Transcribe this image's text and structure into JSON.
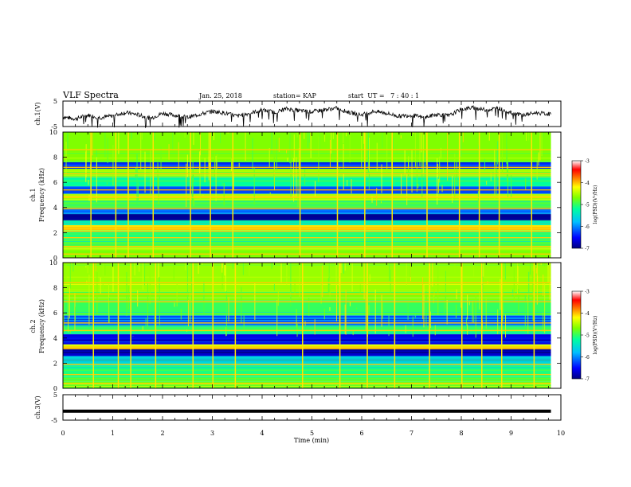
{
  "header": {
    "title": "VLF Spectra",
    "date": "Jan. 25, 2018",
    "station": "station= KAP",
    "start": "start  UT =   7 : 40 : 1"
  },
  "chart_data": [
    {
      "type": "line",
      "name": "ch1-waveform",
      "ylabel": "ch.1(V)",
      "yticks": [
        "5",
        "-5"
      ],
      "ylim": [
        -5,
        5
      ],
      "x": [
        0,
        0.25,
        0.5,
        0.75,
        1,
        1.25,
        1.5,
        1.75,
        2,
        2.25,
        2.5,
        2.75,
        3,
        3.25,
        3.5,
        3.75,
        4,
        4.25,
        4.5,
        4.75,
        5,
        5.25,
        5.5,
        5.75,
        6,
        6.25,
        6.5,
        6.75,
        7,
        7.25,
        7.5,
        7.75,
        8,
        8.25,
        8.5,
        8.75,
        9,
        9.25,
        9.5,
        9.8
      ],
      "values": [
        -1.2,
        -2.0,
        -0.5,
        -1.5,
        -0.8,
        0.5,
        -0.3,
        -1.8,
        0.2,
        -0.6,
        -1.4,
        -0.2,
        1.0,
        0.3,
        -0.9,
        0.2,
        1.5,
        0.6,
        2.0,
        1.2,
        0.8,
        1.6,
        2.2,
        0.5,
        -0.4,
        1.0,
        0.2,
        -1.0,
        -0.5,
        -1.6,
        -0.2,
        -0.8,
        1.8,
        2.4,
        1.5,
        2.2,
        0.3,
        -0.5,
        0.4,
        -0.2
      ],
      "xlim": [
        0,
        10
      ]
    },
    {
      "type": "heatmap",
      "name": "ch1-spectrogram",
      "ylabel": "ch.1\nFrequency (kHz)",
      "yticks": [
        "0",
        "2",
        "4",
        "6",
        "8",
        "10"
      ],
      "ylim": [
        0,
        10
      ],
      "xlim": [
        0,
        10
      ],
      "colorbar": {
        "label": "log(PSD)(V²/Hz)",
        "ticks": [
          "-3",
          "-4",
          "-5",
          "-6",
          "-7"
        ],
        "range": [
          -7,
          -3
        ]
      },
      "bands": [
        {
          "from": 0,
          "to": 0.8,
          "value": -5.0
        },
        {
          "from": 0.8,
          "to": 1.4,
          "value": -5.2
        },
        {
          "from": 1.4,
          "to": 2.2,
          "value": -5.4
        },
        {
          "from": 2.2,
          "to": 2.6,
          "value": -4.4
        },
        {
          "from": 2.6,
          "to": 3.0,
          "value": -5.6
        },
        {
          "from": 3.0,
          "to": 3.5,
          "value": -6.9
        },
        {
          "from": 3.5,
          "to": 4.0,
          "value": -6.2
        },
        {
          "from": 4.0,
          "to": 4.6,
          "value": -5.2
        },
        {
          "from": 4.6,
          "to": 5.1,
          "value": -4.8
        },
        {
          "from": 5.1,
          "to": 5.7,
          "value": -6.3
        },
        {
          "from": 5.7,
          "to": 6.4,
          "value": -5.5
        },
        {
          "from": 6.4,
          "to": 7.1,
          "value": -4.9
        },
        {
          "from": 7.1,
          "to": 7.6,
          "value": -6.4
        },
        {
          "from": 7.6,
          "to": 10.0,
          "value": -5.0
        }
      ],
      "lines_khz": [
        0.3,
        0.9,
        1.6,
        2.1,
        2.4,
        3.9,
        4.8,
        5.4,
        6.7,
        7.2,
        8.6
      ],
      "bursts_min": [
        0.55,
        1.05,
        1.3,
        1.8,
        2.55,
        2.95,
        3.4,
        4.75,
        5.5,
        6.05,
        6.6,
        7.3,
        7.95,
        8.35,
        8.75,
        9.4
      ]
    },
    {
      "type": "heatmap",
      "name": "ch2-spectrogram",
      "ylabel": "ch.2\nFrequency (kHz)",
      "yticks": [
        "0",
        "2",
        "4",
        "6",
        "8",
        "10"
      ],
      "ylim": [
        0,
        10
      ],
      "xlim": [
        0,
        10
      ],
      "colorbar": {
        "label": "log(PSD)(V²/Hz)",
        "ticks": [
          "-3",
          "-4",
          "-5",
          "-6",
          "-7"
        ],
        "range": [
          -7,
          -3
        ]
      },
      "bands": [
        {
          "from": 0,
          "to": 0.9,
          "value": -5.1
        },
        {
          "from": 0.9,
          "to": 1.8,
          "value": -5.4
        },
        {
          "from": 1.8,
          "to": 2.6,
          "value": -5.8
        },
        {
          "from": 2.6,
          "to": 3.1,
          "value": -6.9
        },
        {
          "from": 3.1,
          "to": 3.5,
          "value": -4.6
        },
        {
          "from": 3.5,
          "to": 4.3,
          "value": -6.6
        },
        {
          "from": 4.3,
          "to": 5.0,
          "value": -5.3
        },
        {
          "from": 5.0,
          "to": 5.8,
          "value": -6.2
        },
        {
          "from": 5.8,
          "to": 7.0,
          "value": -5.3
        },
        {
          "from": 7.0,
          "to": 7.7,
          "value": -5.0
        },
        {
          "from": 7.7,
          "to": 10.0,
          "value": -4.9
        }
      ],
      "lines_khz": [
        0.4,
        1.1,
        1.9,
        3.3,
        4.6,
        5.2,
        6.9,
        7.5,
        8.4
      ],
      "bursts_min": [
        0.6,
        1.1,
        1.35,
        1.85,
        2.6,
        3.0,
        3.45,
        4.8,
        5.55,
        6.1,
        6.65,
        7.35,
        8.0,
        8.4,
        8.8,
        9.45
      ]
    },
    {
      "type": "line",
      "name": "ch3-waveform",
      "ylabel": "ch.3(V)",
      "yticks": [
        "5",
        "-5"
      ],
      "ylim": [
        -5,
        5
      ],
      "x": [
        0,
        9.8
      ],
      "values": [
        -1.5,
        -1.5
      ],
      "xlim": [
        0,
        10
      ]
    }
  ],
  "xaxis": {
    "label": "Time (min)",
    "ticks": [
      "0",
      "1",
      "2",
      "3",
      "4",
      "5",
      "6",
      "7",
      "8",
      "9",
      "10"
    ],
    "range": [
      0,
      10
    ]
  },
  "colors": {
    "colormap": [
      "#00007f",
      "#0000ff",
      "#00bfff",
      "#00ff9f",
      "#7fff00",
      "#ffff00",
      "#ff7f00",
      "#ff0000",
      "#ffffff"
    ],
    "ink": "#000000"
  }
}
